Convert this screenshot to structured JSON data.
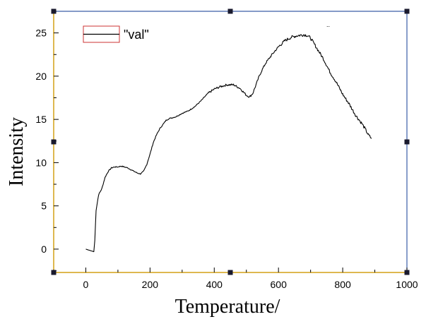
{
  "chart_data": {
    "type": "line",
    "title": "",
    "xlabel": "Temperature/",
    "ylabel": "Intensity",
    "xlim": [
      -100,
      1000
    ],
    "ylim": [
      -2.7,
      27.5
    ],
    "xticks": [
      0,
      200,
      400,
      600,
      800,
      1000
    ],
    "yticks": [
      0,
      5,
      10,
      15,
      20,
      25
    ],
    "xtick_labels": [
      "0",
      "200",
      "400",
      "600",
      "800",
      "1000"
    ],
    "ytick_labels": [
      "0",
      "5",
      "10",
      "15",
      "20",
      "25"
    ],
    "grid": false,
    "legend_position": "top-left",
    "colors": {
      "line": "#000000",
      "frame_bottom_left": "#d4a017",
      "frame_top_right": "#3a5ea8",
      "legend_box": "#cc3333",
      "handles": "#1a1a2e"
    },
    "series": [
      {
        "name": "\"val\"",
        "x": [
          0,
          25,
          28,
          32,
          40,
          50,
          60,
          70,
          80,
          90,
          100,
          110,
          120,
          130,
          140,
          150,
          160,
          170,
          180,
          190,
          200,
          210,
          220,
          230,
          240,
          250,
          260,
          270,
          280,
          290,
          300,
          320,
          340,
          360,
          380,
          400,
          420,
          440,
          460,
          480,
          500,
          510,
          520,
          530,
          540,
          550,
          560,
          570,
          580,
          600,
          620,
          640,
          660,
          680,
          690,
          700,
          710,
          720,
          740,
          760,
          780,
          800,
          820,
          840,
          860,
          870,
          880,
          890
        ],
        "y": [
          0,
          -0.3,
          1.0,
          4.5,
          6.3,
          7.0,
          8.3,
          9.0,
          9.4,
          9.5,
          9.5,
          9.6,
          9.5,
          9.4,
          9.2,
          9.0,
          8.8,
          8.7,
          9.0,
          9.8,
          11.0,
          12.3,
          13.2,
          13.9,
          14.4,
          14.9,
          15.1,
          15.2,
          15.3,
          15.5,
          15.7,
          16.0,
          16.5,
          17.2,
          18.0,
          18.5,
          18.8,
          19.0,
          19.0,
          18.6,
          17.8,
          17.6,
          18.0,
          19.0,
          20.0,
          20.8,
          21.5,
          22.0,
          22.5,
          23.4,
          24.1,
          24.5,
          24.7,
          24.8,
          24.7,
          24.4,
          23.8,
          23.2,
          22.0,
          20.5,
          19.3,
          17.9,
          16.8,
          15.5,
          14.5,
          13.9,
          13.2,
          12.8
        ]
      }
    ]
  }
}
